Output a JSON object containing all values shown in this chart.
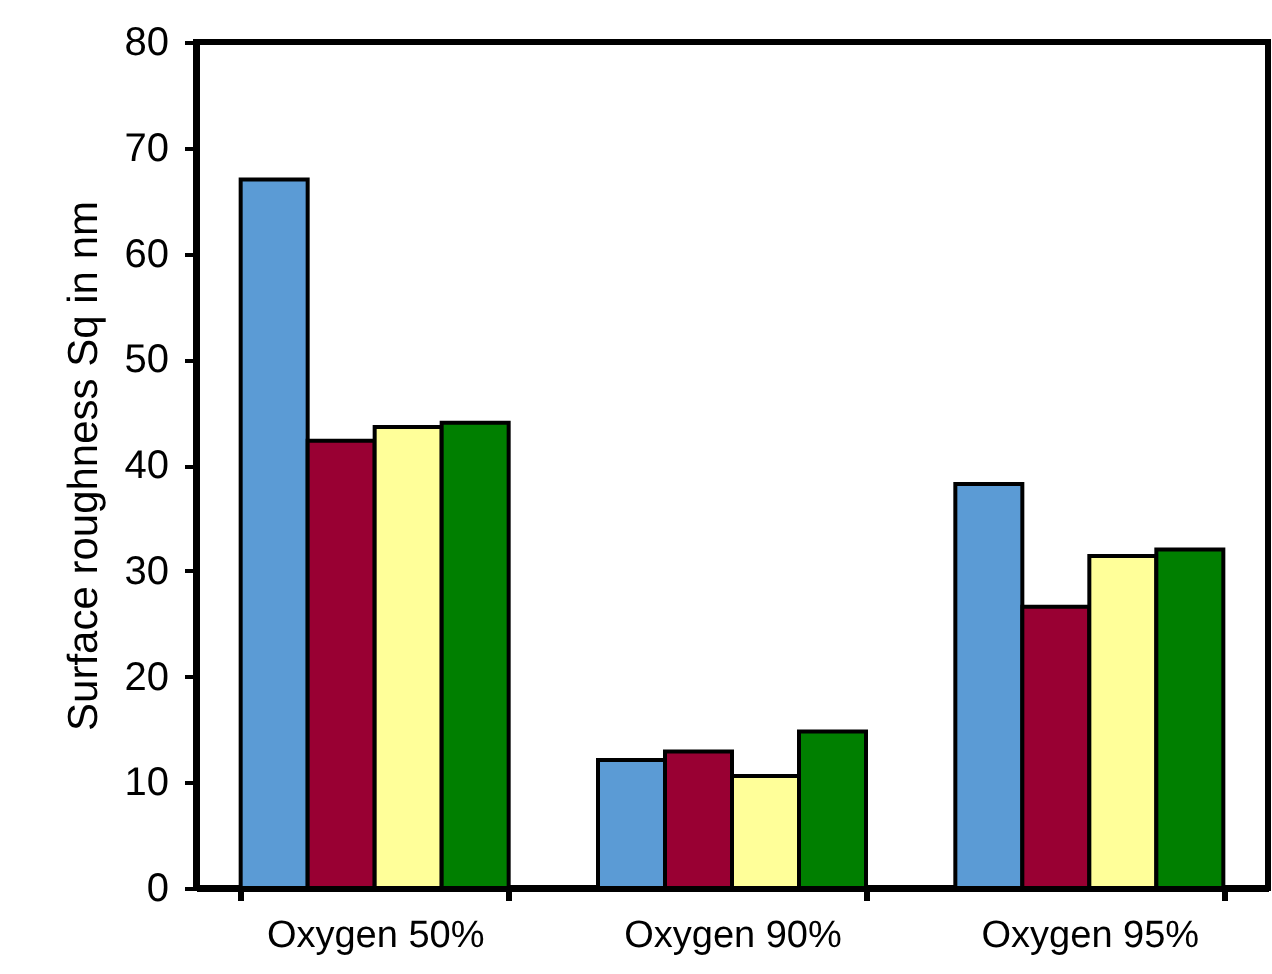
{
  "chart_data": {
    "type": "bar",
    "ylabel": "Surface roughness Sq in nm",
    "categories": [
      "Oxygen 50%",
      "Oxygen 90%",
      "Oxygen 95%"
    ],
    "series": [
      {
        "color": "#5b9bd5",
        "values": [
          67.0,
          12.1,
          38.2
        ]
      },
      {
        "color": "#990033",
        "values": [
          42.3,
          12.9,
          26.6
        ]
      },
      {
        "color": "#ffff99",
        "values": [
          43.6,
          10.6,
          31.4
        ]
      },
      {
        "color": "#007f00",
        "values": [
          44.0,
          14.8,
          32.0
        ]
      }
    ],
    "ylim": [
      0,
      80
    ],
    "yticks": [
      0,
      10,
      20,
      30,
      40,
      50,
      60,
      70,
      80
    ],
    "grid": false,
    "legend": false
  }
}
